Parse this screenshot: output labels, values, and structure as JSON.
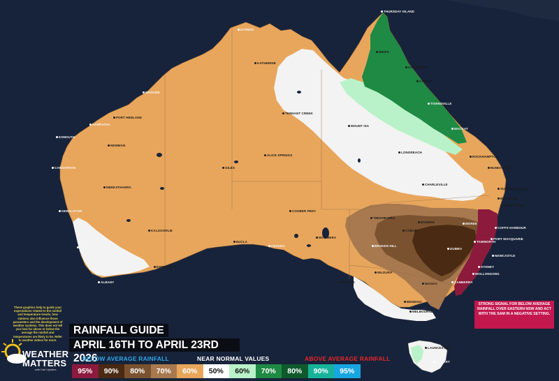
{
  "title": "RAINFALL GUIDE",
  "date_range": "APRIL 16TH TO APRIL 23RD 2026",
  "legend": {
    "below_label": "BELOW AVERAGE RAINFALL",
    "near_label": "NEAR NORMAL VALUES",
    "above_label": "ABOVE AVERAGE RAINFALL",
    "below_color": "#2ea6e6",
    "above_color": "#e8252a",
    "items": [
      {
        "label": "95%",
        "color": "#8b1a3c",
        "text": "#ffffff"
      },
      {
        "label": "90%",
        "color": "#4a2a12",
        "text": "#ffffff"
      },
      {
        "label": "80%",
        "color": "#7a5230",
        "text": "#ffffff"
      },
      {
        "label": "70%",
        "color": "#a8794e",
        "text": "#ffffff"
      },
      {
        "label": "60%",
        "color": "#e8a65c",
        "text": "#ffffff"
      },
      {
        "label": "50%",
        "color": "#ffffff",
        "text": "#111111"
      },
      {
        "label": "60%",
        "color": "#b9f2c8",
        "text": "#111111"
      },
      {
        "label": "70%",
        "color": "#1e8a43",
        "text": "#ffffff"
      },
      {
        "label": "80%",
        "color": "#0e5a2c",
        "text": "#ffffff"
      },
      {
        "label": "90%",
        "color": "#16b39a",
        "text": "#ffffff"
      },
      {
        "label": "95%",
        "color": "#18a6e0",
        "text": "#ffffff"
      }
    ]
  },
  "annotation": "STRONG SIGNAL FOR BELOW AVERAGE RAINFALL OVER EASTERN NSW AND ACT WITH THE SAM IN A NEGATIVE SETTING.",
  "disclaimer": "These graphics help to guide your expectations related to the rainfall and temperature trends, how stations also influence those parameters and the development of weather systems. This does not tell you how far above or below the average the rainfall and temperatures are likely to be. Refer to weather videos for more.",
  "logo": {
    "line1": "WEATHER",
    "line2": "MATTERS",
    "line3": "with Karl Lijnders"
  },
  "map_colors": {
    "ocean": "#17233a",
    "dry60": "#e8a65c",
    "white": "#f3f3f3",
    "green60": "#b9f2c8",
    "green70": "#1e8a43",
    "brown70": "#a8794e",
    "brown80": "#7a5230",
    "brown90": "#4a2a12",
    "red95": "#8b1a3c"
  },
  "cities": [
    {
      "name": "DARWIN"
    },
    {
      "name": "THURSDAY ISLAND"
    },
    {
      "name": "WEIPA"
    },
    {
      "name": "COOKTOWN"
    },
    {
      "name": "CAIRNS"
    },
    {
      "name": "TOWNSVILLE"
    },
    {
      "name": "MACKAY"
    },
    {
      "name": "MOUNT ISA"
    },
    {
      "name": "LONGREACH"
    },
    {
      "name": "ROCKHAMPTON"
    },
    {
      "name": "BUNDABERG"
    },
    {
      "name": "SUNSHINE COAST"
    },
    {
      "name": "BRISBANE"
    },
    {
      "name": "GOLD COAST"
    },
    {
      "name": "CHARLEVILLE"
    },
    {
      "name": "BROOME"
    },
    {
      "name": "PORT HEDLAND"
    },
    {
      "name": "KARRATHA"
    },
    {
      "name": "EXMOUTH"
    },
    {
      "name": "CARNARVON"
    },
    {
      "name": "MEEKATHARRA"
    },
    {
      "name": "GERALDTON"
    },
    {
      "name": "KALGOORLIE"
    },
    {
      "name": "PERTH"
    },
    {
      "name": "ESPERANCE"
    },
    {
      "name": "ALBANY"
    },
    {
      "name": "ALICE SPRINGS"
    },
    {
      "name": "GILES"
    },
    {
      "name": "COOBER PEDY"
    },
    {
      "name": "EUCLA"
    },
    {
      "name": "CEDUNA"
    },
    {
      "name": "WOOMERA"
    },
    {
      "name": "TIBOOBURRA"
    },
    {
      "name": "MOREE"
    },
    {
      "name": "COFFS HARBOUR"
    },
    {
      "name": "PORT MACQUARIE"
    },
    {
      "name": "TAMWORTH"
    },
    {
      "name": "DUBBO"
    },
    {
      "name": "NEWCASTLE"
    },
    {
      "name": "SYDNEY"
    },
    {
      "name": "WOLLONGONG"
    },
    {
      "name": "CANBERRA"
    },
    {
      "name": "BROKEN HILL"
    },
    {
      "name": "MILDURA"
    },
    {
      "name": "WAGGA"
    },
    {
      "name": "BENDIGO"
    },
    {
      "name": "MELBOURNE"
    },
    {
      "name": "ADELAIDE"
    },
    {
      "name": "HOBART"
    },
    {
      "name": "LAUNCESTON"
    },
    {
      "name": "NEWMAN"
    },
    {
      "name": "TENNANT CREEK"
    },
    {
      "name": "KATHERINE"
    },
    {
      "name": "COBAR"
    },
    {
      "name": "BOURKE"
    }
  ]
}
